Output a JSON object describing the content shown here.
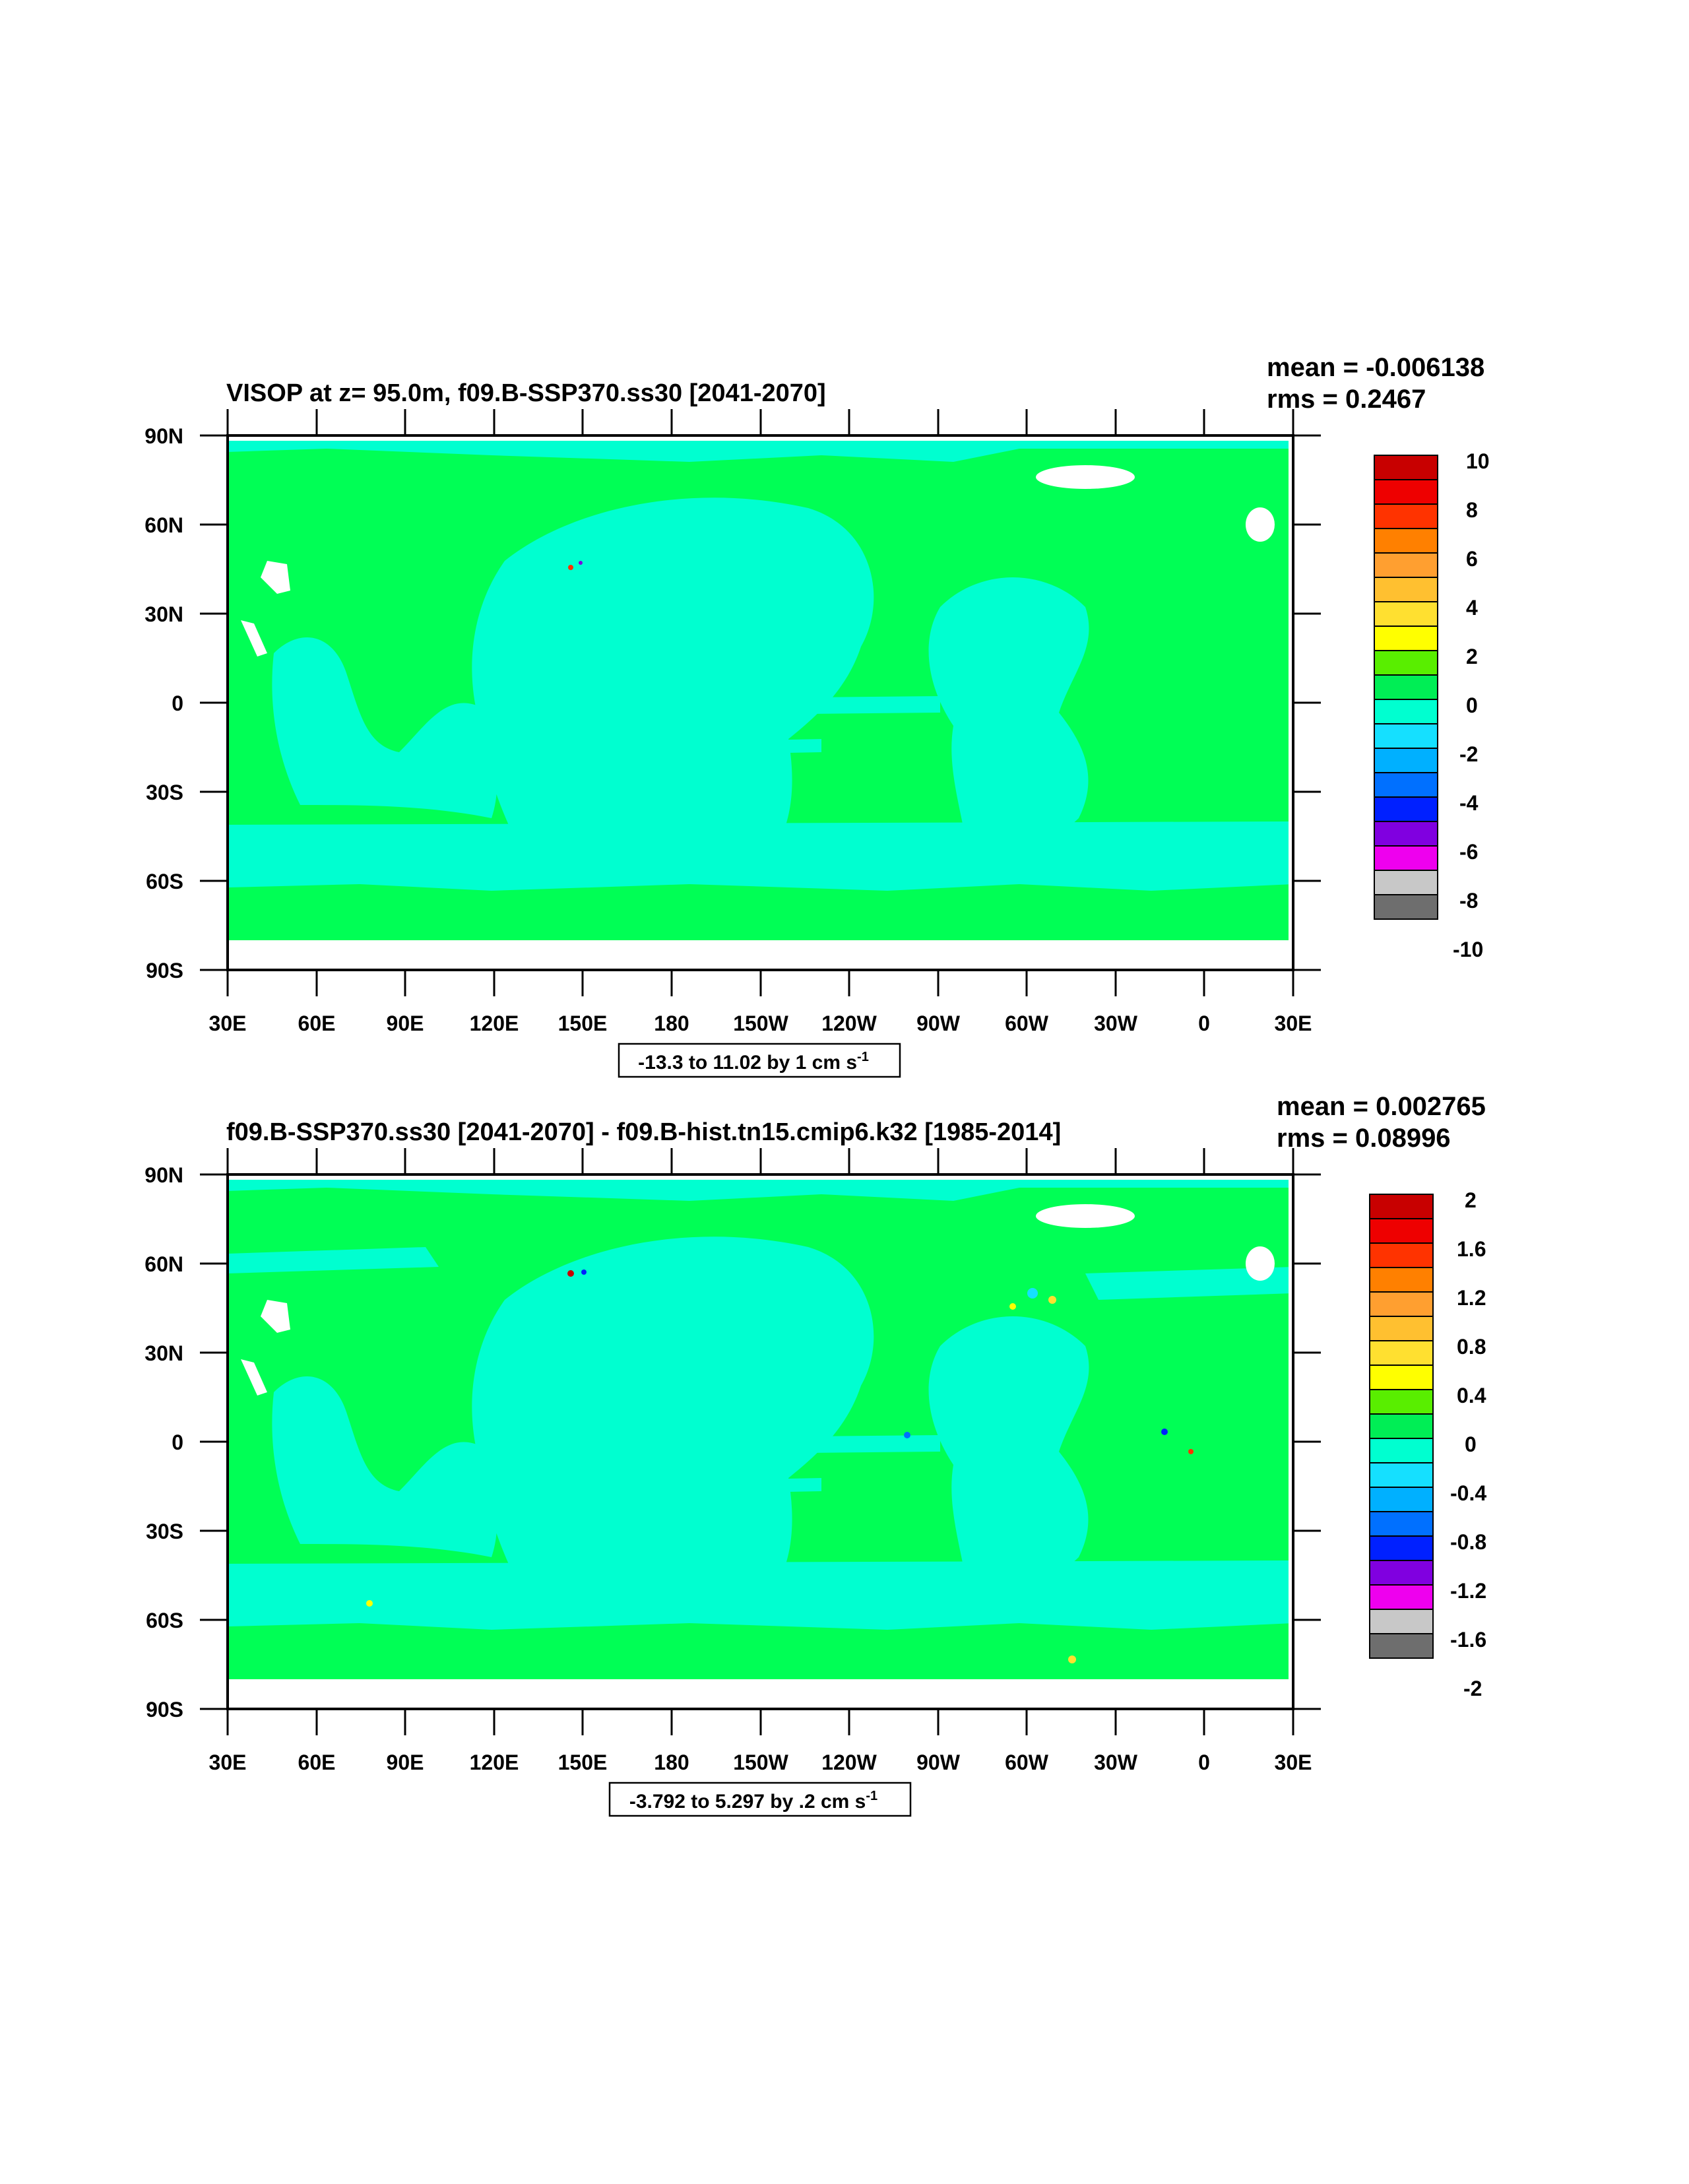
{
  "panels": [
    {
      "id": "top",
      "title": "VISOP at z=  95.0m, f09.B-SSP370.ss30 [2041-2070]",
      "stats": {
        "mean": "mean = -0.006138",
        "rms": "rms = 0.2467"
      },
      "range_note": "-13.3 to 11.02 by 1 cm s",
      "range_sup": "-1",
      "colorbar_labels": [
        "10",
        "8",
        "6",
        "4",
        "2",
        "0",
        "-2",
        "-4",
        "-6",
        "-8",
        "-10"
      ]
    },
    {
      "id": "bottom",
      "title": "f09.B-SSP370.ss30 [2041-2070] - f09.B-hist.tn15.cmip6.k32 [1985-2014]",
      "stats": {
        "mean": "mean = 0.002765",
        "rms": "rms = 0.08996"
      },
      "range_note": "-3.792 to 5.297 by .2 cm s",
      "range_sup": "-1",
      "colorbar_labels": [
        "2",
        "1.6",
        "1.2",
        "0.8",
        "0.4",
        "0",
        "-0.4",
        "-0.8",
        "-1.2",
        "-1.6",
        "-2"
      ]
    }
  ],
  "lat_labels": [
    "90N",
    "60N",
    "30N",
    "0",
    "30S",
    "60S",
    "90S"
  ],
  "lon_labels": [
    "30E",
    "60E",
    "90E",
    "120E",
    "150E",
    "180",
    "150W",
    "120W",
    "90W",
    "60W",
    "30W",
    "0",
    "30E"
  ],
  "colorbar_colors": [
    "#c80000",
    "#ee0000",
    "#ff3300",
    "#ff8000",
    "#ff9f30",
    "#ffc030",
    "#ffe030",
    "#ffff00",
    "#59ee00",
    "#00ee55",
    "#00ffd0",
    "#15e0ff",
    "#00b0ff",
    "#0070ff",
    "#0020ff",
    "#8000e0",
    "#ee00ee",
    "#c8c8c8",
    "#6e6e6e"
  ],
  "colors": {
    "land_fill": "#00ff55",
    "ocean_fill": "#00ffd0",
    "missing": "#ffffff"
  }
}
